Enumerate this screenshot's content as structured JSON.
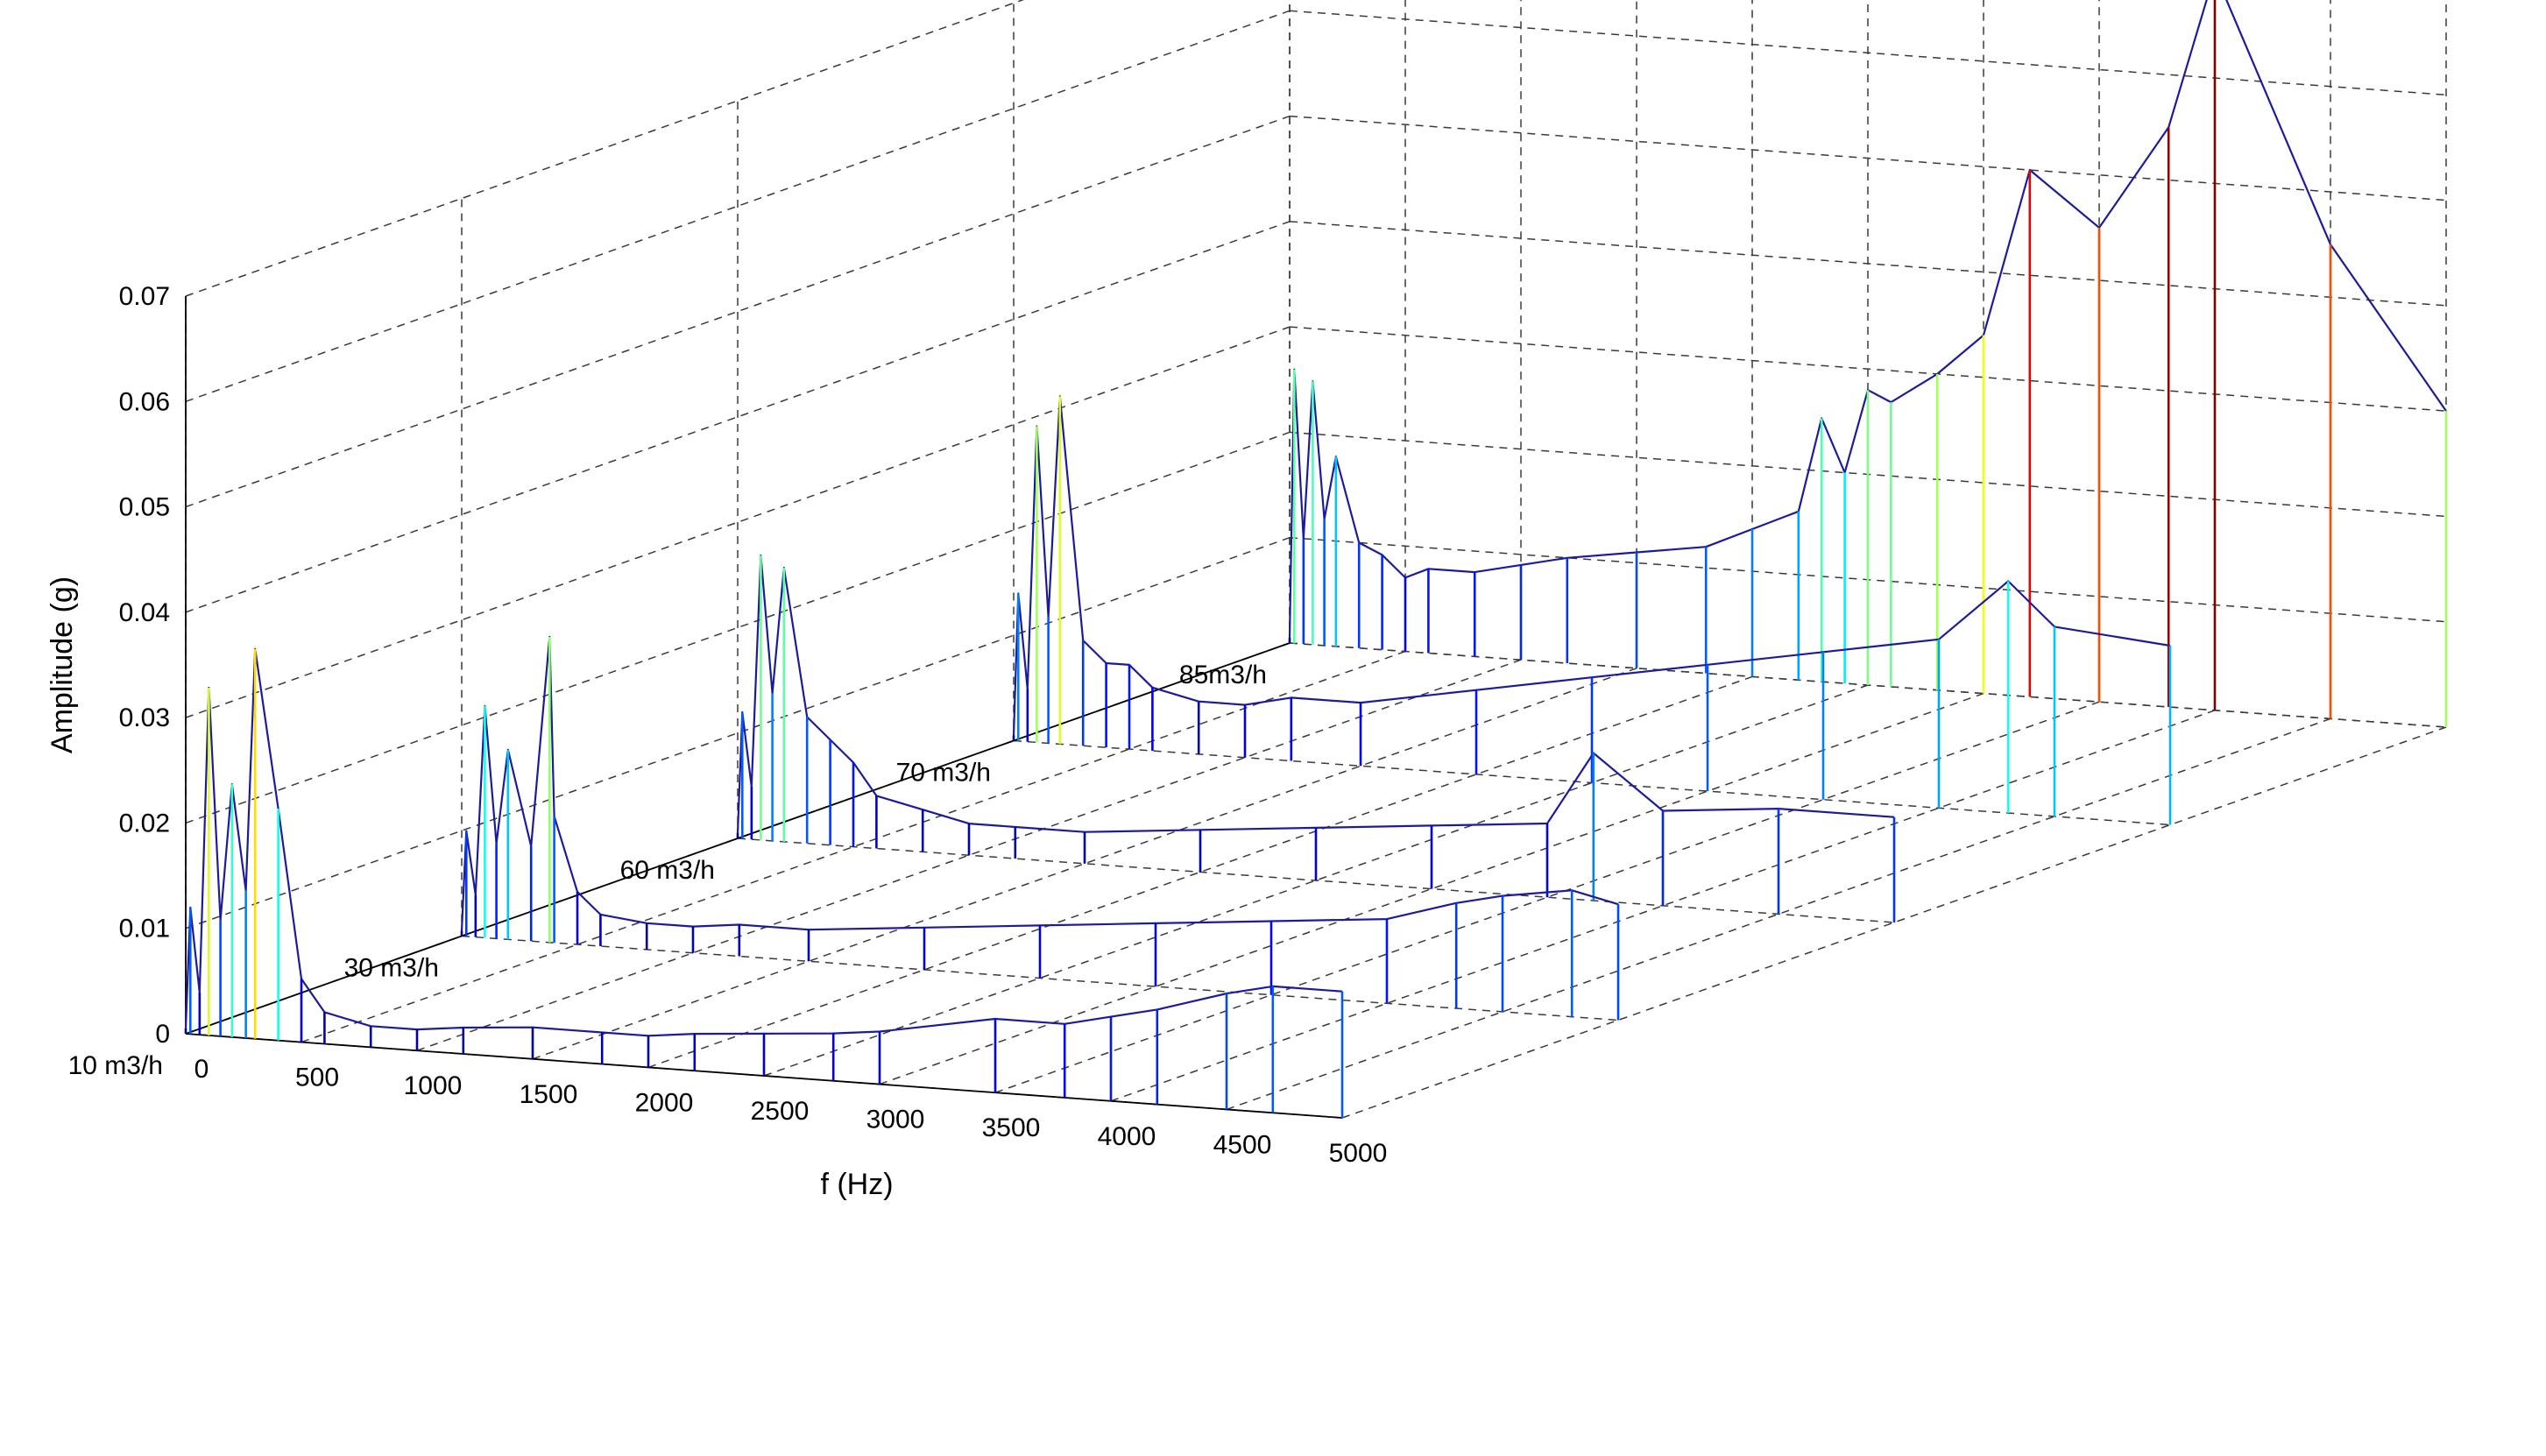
{
  "chart_data": {
    "type": "line",
    "projection": "3d-waterfall",
    "title": "",
    "xlabel": "f (Hz)",
    "ylabel": "",
    "zlabel": "Amplitude (g)",
    "xlim": [
      0,
      5000
    ],
    "zlim": [
      0,
      0.07
    ],
    "x_ticks": [
      "0",
      "500",
      "1000",
      "1500",
      "2000",
      "2500",
      "3000",
      "3500",
      "4000",
      "4500",
      "5000"
    ],
    "z_ticks": [
      "0",
      "0.01",
      "0.02",
      "0.03",
      "0.04",
      "0.05",
      "0.06",
      "0.07"
    ],
    "y_ticks": [
      "85m3/h",
      "70 m3/h",
      "60 m3/h",
      "30 m3/h",
      "10 m3/h"
    ],
    "colormap": "jet",
    "grid": true,
    "series": [
      {
        "name": "10 m3/h",
        "x": [
          0,
          20,
          60,
          100,
          150,
          200,
          260,
          300,
          400,
          500,
          600,
          800,
          1000,
          1200,
          1500,
          1800,
          2000,
          2200,
          2500,
          2800,
          3000,
          3500,
          3800,
          4000,
          4200,
          4500,
          4700,
          5000
        ],
        "values": [
          0.0005,
          0.012,
          0.004,
          0.033,
          0.011,
          0.024,
          0.014,
          0.037,
          0.022,
          0.006,
          0.003,
          0.002,
          0.002,
          0.0025,
          0.003,
          0.003,
          0.003,
          0.0035,
          0.004,
          0.0045,
          0.005,
          0.007,
          0.007,
          0.008,
          0.009,
          0.011,
          0.012,
          0.012
        ]
      },
      {
        "name": "30 m3/h",
        "x": [
          0,
          20,
          60,
          100,
          150,
          200,
          300,
          380,
          400,
          500,
          600,
          800,
          1000,
          1200,
          1500,
          2000,
          2500,
          3000,
          3500,
          4000,
          4300,
          4500,
          4800,
          5000
        ],
        "values": [
          0.0005,
          0.01,
          0.004,
          0.022,
          0.009,
          0.018,
          0.009,
          0.029,
          0.012,
          0.005,
          0.003,
          0.0025,
          0.0025,
          0.003,
          0.003,
          0.004,
          0.005,
          0.006,
          0.007,
          0.008,
          0.01,
          0.011,
          0.012,
          0.011
        ]
      },
      {
        "name": "60 m3/h",
        "x": [
          0,
          20,
          60,
          100,
          150,
          200,
          300,
          400,
          500,
          600,
          800,
          1000,
          1200,
          1500,
          2000,
          2500,
          3000,
          3500,
          3700,
          4000,
          4500,
          5000
        ],
        "values": [
          0.0005,
          0.012,
          0.005,
          0.027,
          0.014,
          0.026,
          0.012,
          0.01,
          0.008,
          0.005,
          0.004,
          0.003,
          0.003,
          0.003,
          0.004,
          0.005,
          0.006,
          0.007,
          0.014,
          0.009,
          0.01,
          0.01
        ]
      },
      {
        "name": "70 m3/h",
        "x": [
          0,
          20,
          60,
          100,
          150,
          200,
          300,
          400,
          500,
          600,
          800,
          1000,
          1200,
          1500,
          2000,
          2500,
          3000,
          3500,
          4000,
          4300,
          4500,
          5000
        ],
        "values": [
          0.0005,
          0.014,
          0.005,
          0.03,
          0.012,
          0.033,
          0.01,
          0.008,
          0.008,
          0.006,
          0.005,
          0.005,
          0.006,
          0.006,
          0.008,
          0.01,
          0.012,
          0.014,
          0.016,
          0.022,
          0.018,
          0.017
        ]
      },
      {
        "name": "85m3/h",
        "x": [
          0,
          20,
          60,
          100,
          150,
          200,
          300,
          400,
          500,
          600,
          800,
          1000,
          1200,
          1500,
          1800,
          2000,
          2200,
          2300,
          2400,
          2500,
          2600,
          2800,
          3000,
          3200,
          3500,
          3800,
          4000,
          4500,
          5000
        ],
        "values": [
          0.0005,
          0.026,
          0.01,
          0.025,
          0.012,
          0.018,
          0.01,
          0.009,
          0.007,
          0.008,
          0.008,
          0.009,
          0.01,
          0.011,
          0.012,
          0.014,
          0.016,
          0.025,
          0.02,
          0.028,
          0.027,
          0.03,
          0.034,
          0.05,
          0.045,
          0.055,
          0.07,
          0.045,
          0.03
        ]
      }
    ]
  }
}
